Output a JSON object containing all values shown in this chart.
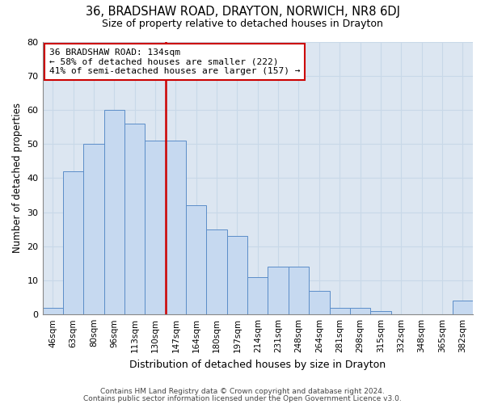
{
  "title1": "36, BRADSHAW ROAD, DRAYTON, NORWICH, NR8 6DJ",
  "title2": "Size of property relative to detached houses in Drayton",
  "xlabel": "Distribution of detached houses by size in Drayton",
  "ylabel": "Number of detached properties",
  "bar_labels": [
    "46sqm",
    "63sqm",
    "80sqm",
    "96sqm",
    "113sqm",
    "130sqm",
    "147sqm",
    "164sqm",
    "180sqm",
    "197sqm",
    "214sqm",
    "231sqm",
    "248sqm",
    "264sqm",
    "281sqm",
    "298sqm",
    "315sqm",
    "332sqm",
    "348sqm",
    "365sqm",
    "382sqm"
  ],
  "bar_values": [
    2,
    42,
    50,
    60,
    56,
    51,
    51,
    32,
    25,
    23,
    11,
    14,
    14,
    7,
    2,
    2,
    1,
    0,
    0,
    0,
    4
  ],
  "bar_color": "#c6d9f0",
  "bar_edge_color": "#5b8dc8",
  "subject_bar_index": 5,
  "subject_line_color": "#cc0000",
  "annotation_line1": "36 BRADSHAW ROAD: 134sqm",
  "annotation_line2": "← 58% of detached houses are smaller (222)",
  "annotation_line3": "41% of semi-detached houses are larger (157) →",
  "annotation_box_color": "#cc0000",
  "ylim": [
    0,
    80
  ],
  "yticks": [
    0,
    10,
    20,
    30,
    40,
    50,
    60,
    70,
    80
  ],
  "grid_color": "#c8d8e8",
  "bg_color": "#dce6f1",
  "footer1": "Contains HM Land Registry data © Crown copyright and database right 2024.",
  "footer2": "Contains public sector information licensed under the Open Government Licence v3.0."
}
